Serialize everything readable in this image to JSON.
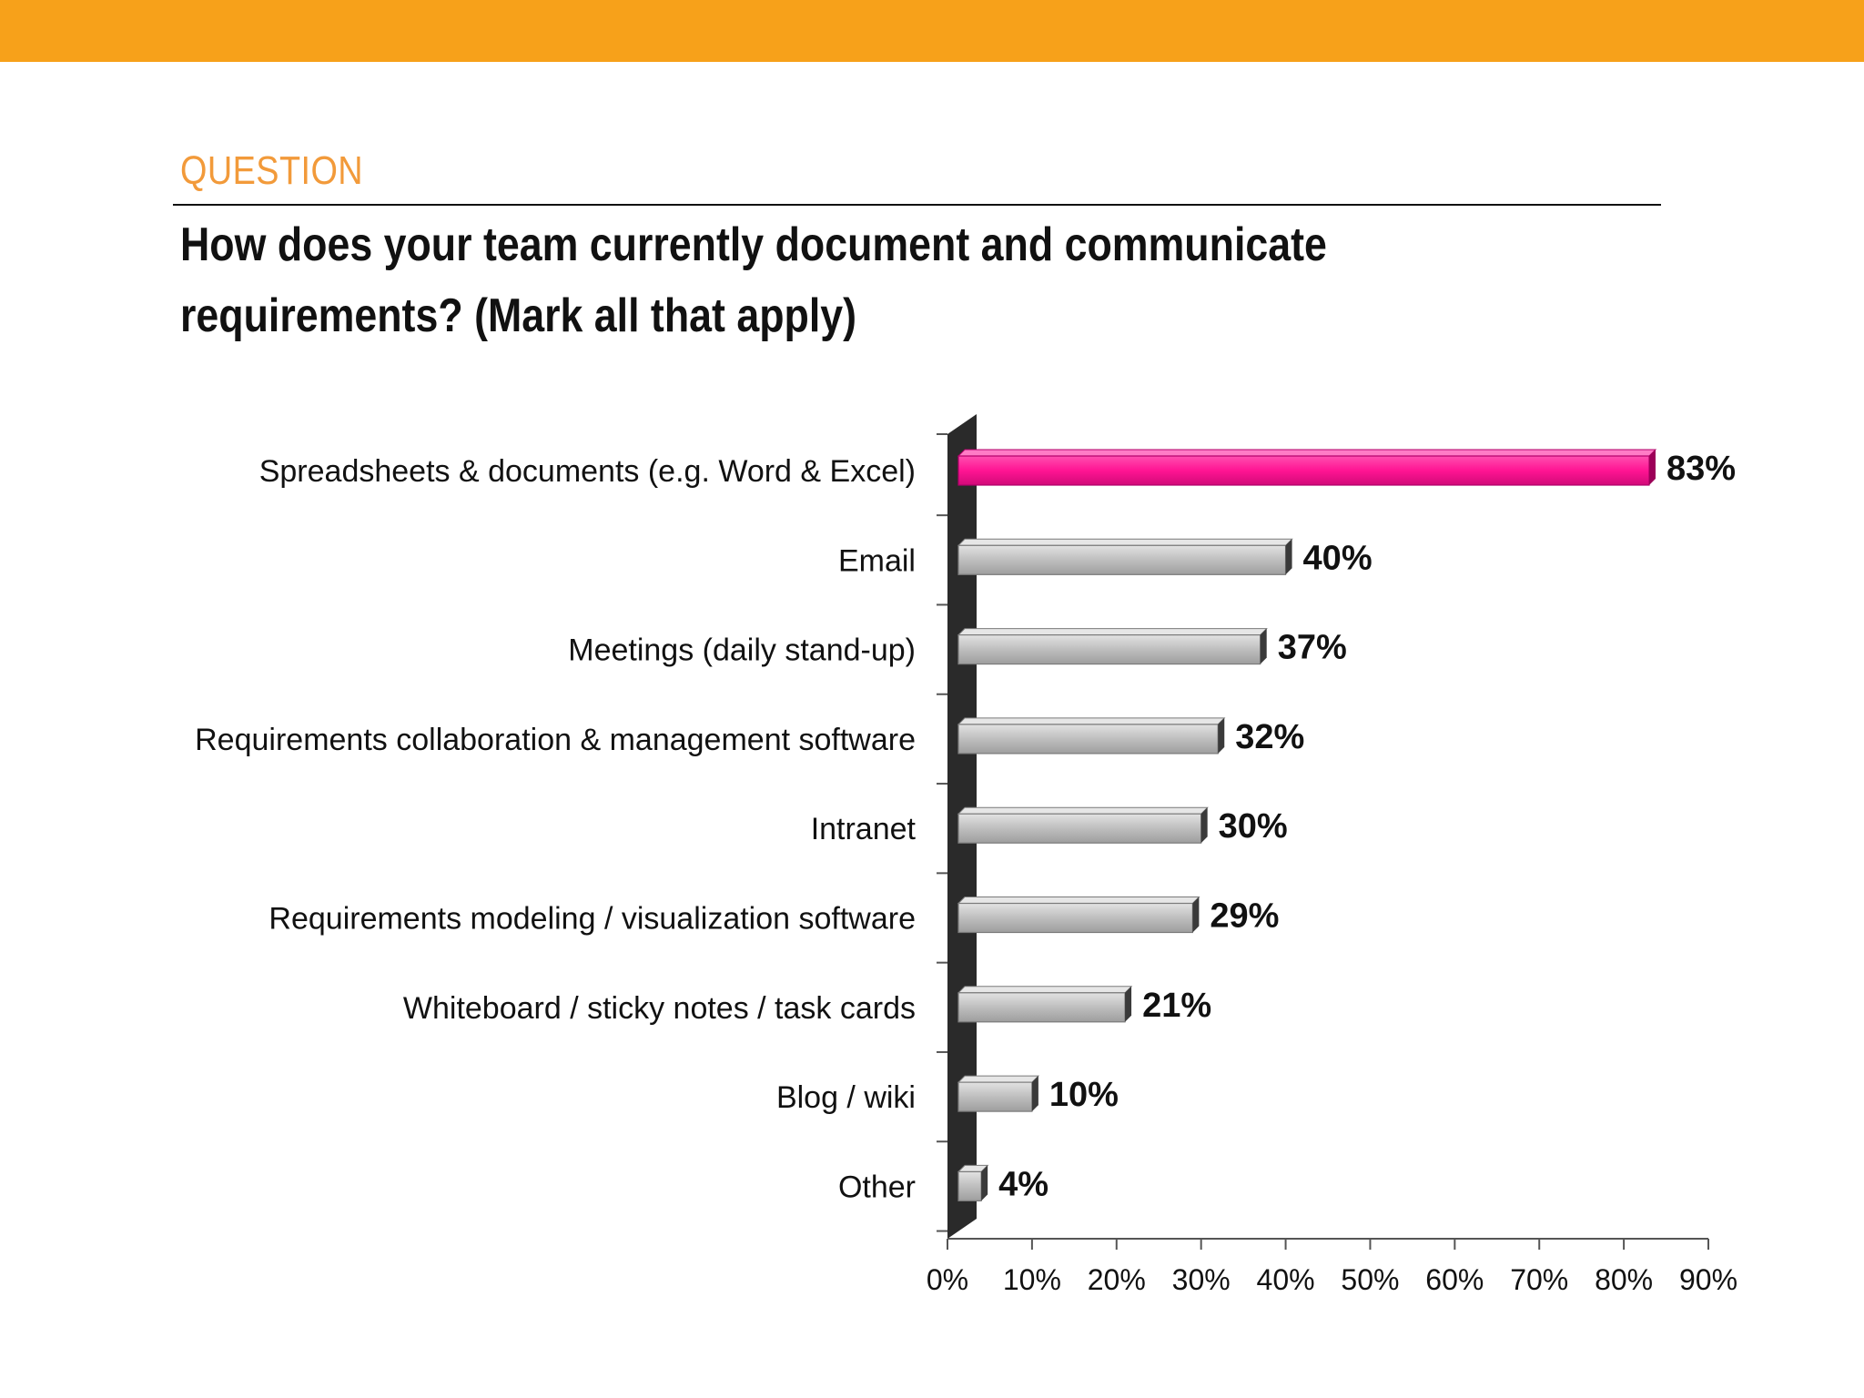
{
  "header": {
    "label": "QUESTION",
    "question": "How does your team currently document and communicate requirements?  (Mark all that apply)"
  },
  "colors": {
    "top_bar": "#F7A11A",
    "label": "#F29A3A",
    "highlight_bar": "#FF1493",
    "bar": "#BDBDBD",
    "bar_edge": "#7A7A7A",
    "axis_wall": "#2A2A2A"
  },
  "chart_data": {
    "type": "bar",
    "orientation": "horizontal",
    "title": "How does your team currently document and communicate requirements?  (Mark all that apply)",
    "categories": [
      "Spreadsheets & documents (e.g. Word & Excel)",
      "Email",
      "Meetings (daily stand-up)",
      "Requirements collaboration & management software",
      "Intranet",
      "Requirements modeling / visualization software",
      "Whiteboard / sticky notes / task cards",
      "Blog / wiki",
      "Other"
    ],
    "values": [
      83,
      40,
      37,
      32,
      30,
      29,
      21,
      10,
      4
    ],
    "value_labels": [
      "83%",
      "40%",
      "37%",
      "32%",
      "30%",
      "29%",
      "21%",
      "10%",
      "4%"
    ],
    "highlighted": [
      true,
      false,
      false,
      false,
      false,
      false,
      false,
      false,
      false
    ],
    "xlim": [
      0,
      90
    ],
    "xticks": [
      0,
      10,
      20,
      30,
      40,
      50,
      60,
      70,
      80,
      90
    ],
    "xtick_labels": [
      "0%",
      "10%",
      "20%",
      "30%",
      "40%",
      "50%",
      "60%",
      "70%",
      "80%",
      "90%"
    ],
    "xlabel": "",
    "ylabel": "",
    "grid": false,
    "legend": "none"
  }
}
